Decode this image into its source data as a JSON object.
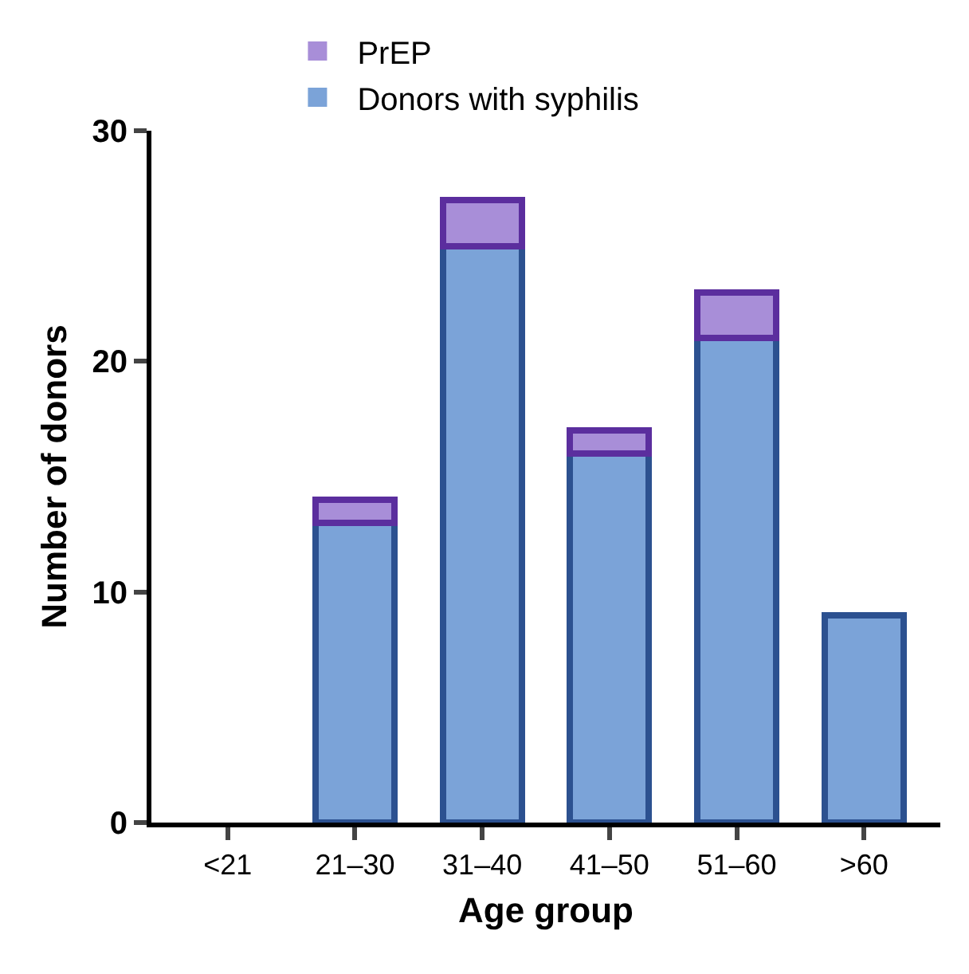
{
  "chart_data": {
    "type": "bar",
    "stacked": true,
    "xlabel": "Age group",
    "ylabel": "Number of donors",
    "categories": [
      "<21",
      "21–30",
      "31–40",
      "41–50",
      "51–60",
      ">60"
    ],
    "series": [
      {
        "name": "Donors with syphilis",
        "color": "#7ba3d8",
        "values": [
          0,
          13,
          25,
          16,
          21,
          9
        ]
      },
      {
        "name": "PrEP",
        "color": "#a88ed8",
        "values": [
          null,
          1,
          2,
          1,
          2,
          null
        ]
      }
    ],
    "ylim": [
      0,
      30
    ],
    "yticks": [
      0,
      10,
      20,
      30
    ],
    "legend": "top left"
  }
}
